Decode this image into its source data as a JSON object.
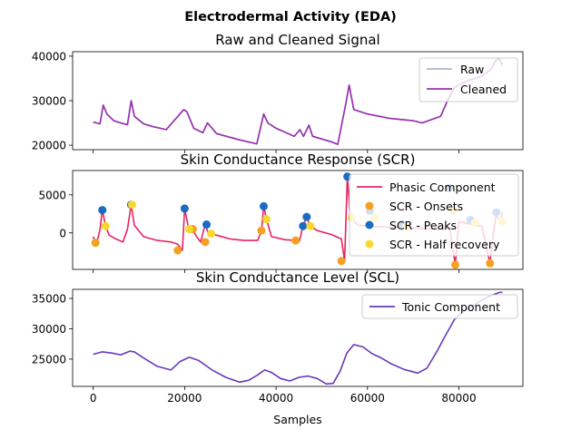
{
  "figure_title": "Electrodermal Activity (EDA)",
  "x_axis_label": "Samples",
  "colors": {
    "raw": "#aab8c8",
    "cleaned": "#9b30b0",
    "phasic": "#e8245f",
    "onsets": "#f4a020",
    "peaks": "#1a6bc4",
    "half_recovery": "#f8d830",
    "tonic": "#6a38b8"
  },
  "chart_data": [
    {
      "type": "line",
      "title": "Raw and Cleaned Signal",
      "xlim": [
        -4500,
        94000
      ],
      "ylim": [
        19000,
        41000
      ],
      "yticks": [
        20000,
        30000,
        40000
      ],
      "ytick_labels": [
        "20000",
        "30000",
        "40000"
      ],
      "legend_position": "top-right",
      "series": [
        {
          "name": "Raw",
          "color_key": "raw",
          "x": [
            0,
            1500,
            2200,
            3000,
            4500,
            6000,
            7500,
            8300,
            9000,
            11000,
            13000,
            16000,
            19800,
            20500,
            22000,
            24000,
            25000,
            27000,
            32000,
            35800,
            37300,
            38200,
            40000,
            44000,
            45200,
            46000,
            47200,
            48000,
            52000,
            53500,
            55300,
            56000,
            57000,
            60000,
            65000,
            70000,
            72000,
            76000,
            77500,
            79000,
            82000,
            85000,
            87000,
            88000,
            88800,
            89500
          ],
          "values": [
            25200,
            24800,
            29000,
            27000,
            25500,
            25000,
            24600,
            30000,
            26500,
            24800,
            24200,
            23500,
            28000,
            27500,
            23800,
            22800,
            25000,
            22600,
            21200,
            20300,
            27000,
            25000,
            23800,
            22000,
            23500,
            22000,
            24500,
            22000,
            20800,
            20200,
            29500,
            33500,
            28000,
            27000,
            26000,
            25500,
            25000,
            26500,
            30000,
            33000,
            34500,
            35500,
            37000,
            39000,
            39500,
            38000
          ]
        },
        {
          "name": "Cleaned",
          "color_key": "cleaned",
          "x": [
            0,
            1500,
            2200,
            3000,
            4500,
            6000,
            7500,
            8300,
            9000,
            11000,
            13000,
            16000,
            19800,
            20500,
            22000,
            24000,
            25000,
            27000,
            32000,
            35800,
            37300,
            38200,
            40000,
            44000,
            45200,
            46000,
            47200,
            48000,
            52000,
            53500,
            55300,
            56000,
            57000,
            60000,
            65000,
            70000,
            72000,
            76000,
            77500,
            79000,
            82000,
            85000,
            87000,
            88000,
            88800,
            89500
          ],
          "values": [
            25200,
            24800,
            29000,
            27000,
            25500,
            25000,
            24600,
            30000,
            26500,
            24800,
            24200,
            23500,
            28000,
            27500,
            23800,
            22800,
            25000,
            22600,
            21200,
            20300,
            27000,
            25000,
            23800,
            22000,
            23500,
            22000,
            24500,
            22000,
            20800,
            20200,
            29500,
            33500,
            28000,
            27000,
            26000,
            25500,
            25000,
            26500,
            30000,
            33000,
            34500,
            35500,
            37000,
            39000,
            39500,
            38000
          ]
        }
      ]
    },
    {
      "type": "line",
      "title": "Skin Conductance Response (SCR)",
      "xlim": [
        -4500,
        94000
      ],
      "ylim": [
        -4800,
        8200
      ],
      "yticks": [
        0,
        5000
      ],
      "ytick_labels": [
        "0",
        "5000"
      ],
      "legend_position": "top-right",
      "series": [
        {
          "name": "Phasic Component",
          "color_key": "phasic",
          "x": [
            0,
            500,
            1000,
            1500,
            2000,
            2700,
            3500,
            5000,
            6500,
            7500,
            8300,
            9000,
            11000,
            14000,
            17000,
            18500,
            19500,
            20000,
            20800,
            21800,
            22500,
            23500,
            24500,
            25200,
            27000,
            30000,
            33000,
            36000,
            36800,
            37300,
            37900,
            39000,
            42000,
            44300,
            45100,
            45900,
            46700,
            47500,
            49000,
            52000,
            54300,
            55000,
            55600,
            56200,
            58000,
            62000,
            68000,
            75000,
            78000,
            79200,
            80000,
            82000,
            85000,
            86800,
            87500,
            88200,
            89000,
            89500
          ],
          "values": [
            -500,
            -1300,
            -800,
            500,
            3000,
            900,
            -300,
            -800,
            -1200,
            500,
            3700,
            1000,
            -500,
            -1000,
            -1200,
            -1500,
            -2300,
            3200,
            800,
            500,
            -400,
            -1200,
            1100,
            -100,
            -300,
            -800,
            -1000,
            -1000,
            300,
            3500,
            1800,
            -500,
            -900,
            -1000,
            -1100,
            900,
            2100,
            900,
            300,
            -200,
            -800,
            -3700,
            7400,
            2000,
            1000,
            800,
            700,
            500,
            600,
            -4200,
            1500,
            1200,
            900,
            -4000,
            -200,
            2500,
            1500,
            2700
          ]
        },
        {
          "name": "SCR - Onsets",
          "color_key": "onsets",
          "marker": "circle",
          "x": [
            500,
            8300,
            18500,
            21800,
            24500,
            36800,
            44300,
            54300,
            79200,
            86800
          ],
          "values": [
            -1300,
            3700,
            -2300,
            500,
            -1200,
            300,
            -1000,
            -3700,
            -4200,
            -4000
          ]
        },
        {
          "name": "SCR - Peaks",
          "color_key": "peaks",
          "marker": "circle",
          "x": [
            2000,
            8300,
            20000,
            24800,
            37300,
            45900,
            46700,
            55600,
            60500,
            67500,
            77800,
            82500,
            88200
          ],
          "values": [
            3000,
            3700,
            3200,
            1100,
            3500,
            900,
            2100,
            7400,
            2900,
            1100,
            5900,
            1700,
            2700
          ]
        },
        {
          "name": "SCR - Half recovery",
          "color_key": "half_recovery",
          "marker": "circle",
          "x": [
            2700,
            8500,
            21000,
            25800,
            37900,
            47500,
            56500,
            61500,
            68500,
            78800,
            83500,
            89500
          ],
          "values": [
            900,
            3700,
            500,
            -100,
            1800,
            900,
            2000,
            2000,
            800,
            3000,
            1300,
            1500
          ]
        }
      ]
    },
    {
      "type": "line",
      "title": "Skin Conductance Level (SCL)",
      "xlim": [
        -4500,
        94000
      ],
      "ylim": [
        20500,
        36500
      ],
      "yticks": [
        25000,
        30000,
        35000
      ],
      "ytick_labels": [
        "25000",
        "30000",
        "35000"
      ],
      "xticks": [
        0,
        20000,
        40000,
        60000,
        80000
      ],
      "xtick_labels": [
        "0",
        "20000",
        "40000",
        "60000",
        "80000"
      ],
      "legend_position": "top-right",
      "series": [
        {
          "name": "Tonic Component",
          "color_key": "tonic",
          "x": [
            0,
            2000,
            4000,
            6000,
            8000,
            9000,
            11000,
            14000,
            17000,
            19000,
            21000,
            23000,
            26000,
            29000,
            32000,
            34000,
            36000,
            37500,
            39000,
            41000,
            43000,
            45000,
            47000,
            49000,
            51000,
            52500,
            54000,
            55500,
            57000,
            59000,
            61000,
            63000,
            65000,
            68000,
            71000,
            73000,
            75000,
            77000,
            79000,
            81000,
            83000,
            85000,
            87000,
            89000,
            89500
          ],
          "values": [
            25800,
            26200,
            26000,
            25700,
            26300,
            26200,
            25200,
            23800,
            23200,
            24600,
            25300,
            24800,
            23200,
            22000,
            21200,
            21500,
            22400,
            23200,
            22800,
            21800,
            21400,
            22000,
            22200,
            21800,
            20900,
            21000,
            23000,
            26000,
            27400,
            27000,
            25900,
            25200,
            24300,
            23300,
            22700,
            23500,
            26000,
            28800,
            31500,
            32900,
            33800,
            34700,
            35500,
            36000,
            36000
          ]
        }
      ]
    }
  ]
}
